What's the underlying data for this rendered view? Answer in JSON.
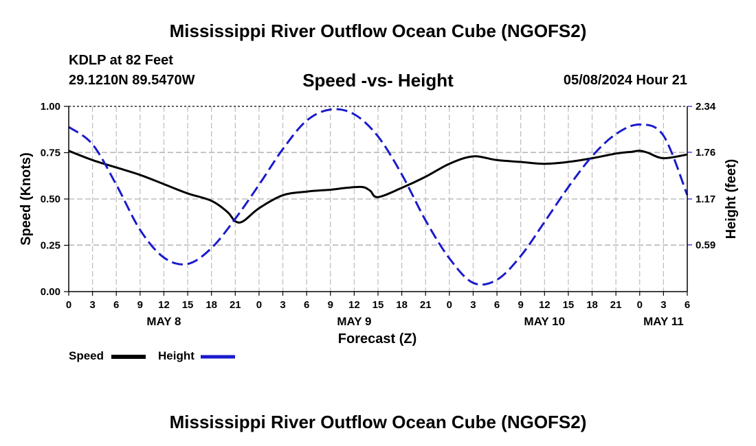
{
  "header": {
    "title": "Mississippi River Outflow Ocean Cube (NGOFS2)",
    "station": "KDLP at 82 Feet",
    "coords": "29.1210N  89.5470W",
    "subtitle": "Speed -vs- Height",
    "datetime": "05/08/2024 Hour 21"
  },
  "footer": {
    "title": "Mississippi River Outflow Ocean Cube (NGOFS2)"
  },
  "legend": {
    "speed_label": "Speed",
    "height_label": "Height"
  },
  "colors": {
    "speed": "#000000",
    "height": "#1a1acc",
    "grid": "#bbbbbb"
  },
  "chart_data": {
    "type": "line",
    "xlabel": "Forecast (Z)",
    "ylabel_left": "Speed (Knots)",
    "ylabel_right": "Height (feet)",
    "x_unit": "hours since 2024-05-08 00Z",
    "xlim": [
      0,
      78
    ],
    "ylim_left": [
      0,
      1
    ],
    "ylim_right": [
      0.0,
      2.34
    ],
    "left_ticks": [
      "0.00",
      "0.25",
      "0.50",
      "0.75",
      "1.00"
    ],
    "right_ticks": [
      "0.59",
      "1.17",
      "1.76",
      "2.34"
    ],
    "x_tick_labels": [
      "0",
      "3",
      "6",
      "9",
      "12",
      "15",
      "18",
      "21",
      "0",
      "3",
      "6",
      "9",
      "12",
      "15",
      "18",
      "21",
      "0",
      "3",
      "6",
      "9",
      "12",
      "15",
      "18",
      "21",
      "0",
      "3",
      "6"
    ],
    "date_labels": [
      {
        "label": "MAY 8",
        "hour": 12
      },
      {
        "label": "MAY 9",
        "hour": 36
      },
      {
        "label": "MAY 10",
        "hour": 60
      },
      {
        "label": "MAY 11",
        "hour": 75
      }
    ],
    "series": [
      {
        "name": "Speed",
        "axis": "left",
        "x": [
          0,
          3,
          6,
          9,
          12,
          15,
          18,
          20,
          21,
          22,
          24,
          27,
          30,
          33,
          35,
          37,
          38,
          39,
          42,
          45,
          48,
          51,
          54,
          57,
          60,
          63,
          66,
          69,
          71,
          72,
          73,
          75,
          78
        ],
        "values": [
          0.76,
          0.71,
          0.67,
          0.63,
          0.58,
          0.53,
          0.49,
          0.43,
          0.38,
          0.38,
          0.45,
          0.52,
          0.54,
          0.55,
          0.56,
          0.565,
          0.545,
          0.51,
          0.56,
          0.62,
          0.69,
          0.73,
          0.71,
          0.7,
          0.69,
          0.7,
          0.72,
          0.745,
          0.755,
          0.76,
          0.75,
          0.72,
          0.74
        ]
      },
      {
        "name": "Height",
        "axis": "right",
        "x": [
          0,
          3,
          6,
          9,
          12,
          15,
          18,
          21,
          24,
          27,
          30,
          33,
          36,
          39,
          42,
          45,
          48,
          51,
          54,
          57,
          60,
          63,
          66,
          69,
          72,
          75,
          78
        ],
        "values": [
          2.08,
          1.86,
          1.35,
          0.78,
          0.43,
          0.35,
          0.55,
          0.92,
          1.35,
          1.8,
          2.16,
          2.3,
          2.24,
          1.96,
          1.48,
          0.9,
          0.42,
          0.11,
          0.15,
          0.45,
          0.88,
          1.32,
          1.71,
          1.99,
          2.11,
          1.97,
          1.22
        ]
      }
    ]
  }
}
